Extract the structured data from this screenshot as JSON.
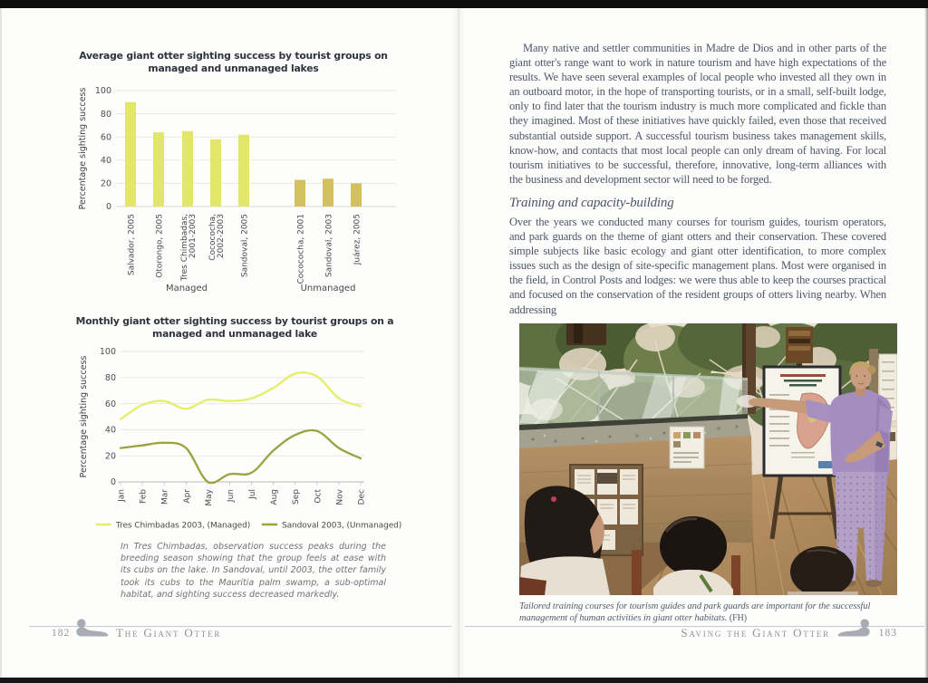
{
  "left_page": {
    "caption": "In Tres Chimbadas, observation success peaks during the breeding season showing that the group feels at ease with its cubs on the lake. In Sandoval, until 2003, the otter family took its cubs to the Mauritia palm swamp, a sub-optimal habitat, and sighting success decreased markedly.",
    "footer": {
      "page_number": "182",
      "book_title": "The Giant Otter"
    }
  },
  "right_page": {
    "paragraph1": "Many native and settler communities in Madre de Dios and in other parts of the giant otter's range want to work in nature tourism and have high expectations of the results. We have seen several examples of local people who invested all they own in an outboard motor, in the hope of transporting tourists, or in a small, self-built lodge, only to find later that the tourism industry is much more complicated and fickle than they imagined. Most of these initiatives have quickly failed, even those that received substantial outside support. A successful tourism business takes management skills, know-how, and contacts that most local people can only dream of having. For local tourism initiatives to be successful, therefore, innovative, long-term alliances with the business and development sector will need to be forged.",
    "section_heading": "Training and capacity-building",
    "paragraph2": "Over the years we conducted many courses for tourism guides, tourism operators, and park guards on the theme of giant otters and their conservation. These covered simple subjects like basic ecology and giant otter identification, to more complex issues such as the design of site-specific management plans. Most were organised in the field, in Control Posts and lodges: we were thus able to keep the courses practical and focused on the conservation of the resident groups of otters living nearby. When addressing",
    "photo_caption": "Tailored training courses for tourism guides and park guards are important for the successful management of human activities in giant otter habitats.",
    "photo_credit": "(FH)",
    "footer": {
      "chapter_title": "Saving the Giant Otter",
      "page_number": "183"
    }
  },
  "chart_data": [
    {
      "type": "bar",
      "title": "Average giant otter sighting success by tourist groups on managed and unmanaged lakes",
      "ylabel": "Percentage sighting success",
      "ylim": [
        0,
        100
      ],
      "yticks": [
        0,
        20,
        40,
        60,
        80,
        100
      ],
      "grid": true,
      "groups": [
        "Managed",
        "Unmanaged"
      ],
      "group_of": [
        0,
        0,
        0,
        0,
        0,
        1,
        1,
        1
      ],
      "categories": [
        [
          "Salvador, 2005"
        ],
        [
          "Otorongo, 2005"
        ],
        [
          "Tres Chimbadas,",
          "2001-2003"
        ],
        [
          "Cocococha,",
          "2002-2003"
        ],
        [
          "Sandoval, 2005"
        ],
        [
          "Cocococha, 2001"
        ],
        [
          "Sandoval, 2003"
        ],
        [
          "Juárez, 2005"
        ]
      ],
      "values": [
        90,
        64,
        65,
        58,
        62,
        23,
        24,
        20
      ],
      "colors": {
        "managed": "#e2e76c",
        "unmanaged": "#d3c05f"
      }
    },
    {
      "type": "line",
      "title": "Monthly giant otter sighting success by tourist groups on a managed and unmanaged lake",
      "ylabel": "Percentage sighting success",
      "ylim": [
        0,
        100
      ],
      "yticks": [
        0,
        20,
        40,
        60,
        80,
        100
      ],
      "grid": true,
      "legend_position": "bottom",
      "x": [
        "Jan",
        "Feb",
        "Mar",
        "Apr",
        "May",
        "Jun",
        "Jul",
        "Aug",
        "Sep",
        "Oct",
        "Nov",
        "Dec"
      ],
      "series": [
        {
          "name": "Tres Chimbadas 2003, (Managed)",
          "color": "#e5ee68",
          "values": [
            48,
            59,
            62,
            56,
            63,
            62,
            64,
            72,
            83,
            81,
            64,
            58
          ]
        },
        {
          "name": "Sandoval 2003, (Unmanaged)",
          "color": "#99a33f",
          "values": [
            26,
            28,
            30,
            26,
            0,
            6,
            7,
            24,
            36,
            39,
            26,
            18
          ]
        }
      ]
    }
  ]
}
